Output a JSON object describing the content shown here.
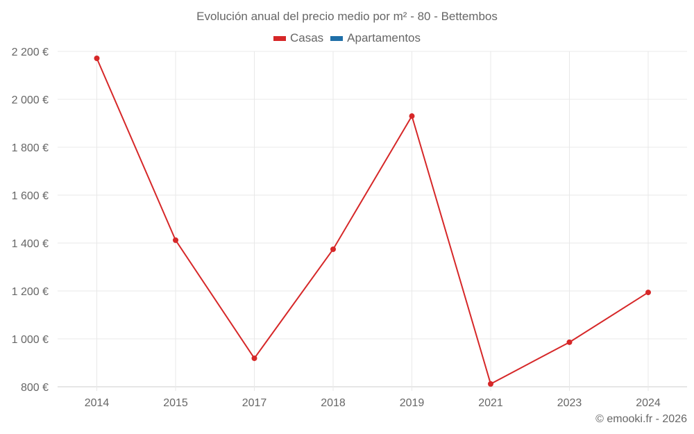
{
  "chart": {
    "title": "Evolución anual del precio medio por m² - 80 - Bettembos",
    "legend": [
      {
        "label": "Casas",
        "color": "#d62728"
      },
      {
        "label": "Apartamentos",
        "color": "#1f6fa8"
      }
    ],
    "credit": "© emooki.fr - 2026"
  },
  "chart_data": {
    "type": "line",
    "title": "Evolución anual del precio medio por m² - 80 - Bettembos",
    "xlabel": "",
    "ylabel": "",
    "categories": [
      "2014",
      "2015",
      "2017",
      "2018",
      "2019",
      "2021",
      "2023",
      "2024"
    ],
    "series": [
      {
        "name": "Casas",
        "color": "#d62728",
        "values": [
          2171,
          1412,
          919,
          1374,
          1930,
          812,
          986,
          1194
        ]
      },
      {
        "name": "Apartamentos",
        "color": "#1f6fa8",
        "values": []
      }
    ],
    "ylim": [
      800,
      2200
    ],
    "yticks": [
      800,
      1000,
      1200,
      1400,
      1600,
      1800,
      2000,
      2200
    ],
    "ytick_labels": [
      "800 €",
      "1 000 €",
      "1 200 €",
      "1 400 €",
      "1 600 €",
      "1 800 €",
      "2 000 €",
      "2 200 €"
    ],
    "grid": true,
    "legend_position": "top"
  }
}
